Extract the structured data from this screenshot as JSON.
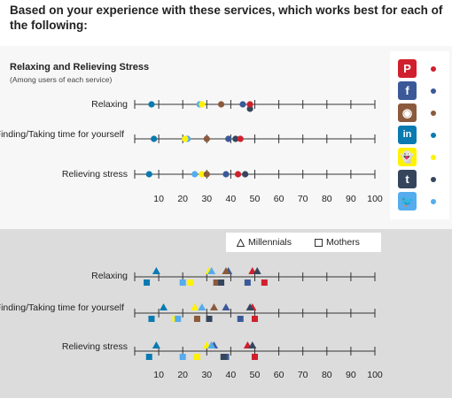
{
  "question": "Based on your experience with these services, which works best for each of the following:",
  "top": {
    "title": "Relaxing and Relieving Stress",
    "note": "(Among users of each service)"
  },
  "bottom": {
    "legend": {
      "millennials": "Millennials",
      "mothers": "Mothers"
    }
  },
  "colors": {
    "Pinterest": "#d0202d",
    "Facebook": "#3b5998",
    "Instagram": "#8b5a3c",
    "LinkedIn": "#0a7ab0",
    "Snapchat": "#fff200",
    "Tumblr": "#35465c",
    "Twitter": "#55acee"
  },
  "brands": [
    {
      "name": "Pinterest",
      "icon": "pinterest-icon",
      "glyph": "P",
      "bg": "#d0202d",
      "fg": "#ffffff"
    },
    {
      "name": "Facebook",
      "icon": "facebook-icon",
      "glyph": "f",
      "bg": "#3b5998",
      "fg": "#ffffff"
    },
    {
      "name": "Instagram",
      "icon": "instagram-icon",
      "glyph": "◉",
      "bg": "#8b5a3c",
      "fg": "#ffffff"
    },
    {
      "name": "LinkedIn",
      "icon": "linkedin-icon",
      "glyph": "in",
      "bg": "#0a7ab0",
      "fg": "#ffffff"
    },
    {
      "name": "Snapchat",
      "icon": "snapchat-icon",
      "glyph": "👻",
      "bg": "#fff200",
      "fg": "#ffffff"
    },
    {
      "name": "Tumblr",
      "icon": "tumblr-icon",
      "glyph": "t",
      "bg": "#35465c",
      "fg": "#ffffff"
    },
    {
      "name": "Twitter",
      "icon": "twitter-icon",
      "glyph": "🐦",
      "bg": "#55acee",
      "fg": "#ffffff"
    }
  ],
  "chart_data": [
    {
      "type": "scatter",
      "title": "Relaxing and Relieving Stress",
      "subtitle": "(Among users of each service)",
      "xlim": [
        0,
        100
      ],
      "xticks": [
        10,
        20,
        30,
        40,
        50,
        60,
        70,
        80,
        90,
        100
      ],
      "categories": [
        "Relaxing",
        "Finding/Taking time for yourself",
        "Relieving stress"
      ],
      "series": [
        {
          "name": "Pinterest",
          "values": [
            48,
            44,
            43
          ]
        },
        {
          "name": "Facebook",
          "values": [
            45,
            39,
            38
          ]
        },
        {
          "name": "Instagram",
          "values": [
            36,
            30,
            30
          ]
        },
        {
          "name": "LinkedIn",
          "values": [
            7,
            8,
            6
          ]
        },
        {
          "name": "Snapchat",
          "values": [
            28,
            21,
            28
          ]
        },
        {
          "name": "Tumblr",
          "values": [
            48,
            42,
            46
          ]
        },
        {
          "name": "Twitter",
          "values": [
            27,
            22,
            25
          ]
        }
      ]
    },
    {
      "type": "scatter",
      "xlim": [
        0,
        100
      ],
      "xticks": [
        10,
        20,
        30,
        40,
        50,
        60,
        70,
        80,
        90,
        100
      ],
      "categories": [
        "Relaxing",
        "Finding/Taking time for yourself",
        "Relieving stress"
      ],
      "legend": [
        "Millennials",
        "Mothers"
      ],
      "series": [
        {
          "name": "Pinterest",
          "millennials": [
            49,
            49,
            47
          ],
          "mothers": [
            54,
            50,
            50
          ]
        },
        {
          "name": "Facebook",
          "millennials": [
            39,
            38,
            33
          ],
          "mothers": [
            47,
            44,
            38
          ]
        },
        {
          "name": "Instagram",
          "millennials": [
            38,
            33,
            32
          ],
          "mothers": [
            34,
            26,
            26
          ]
        },
        {
          "name": "LinkedIn",
          "millennials": [
            9,
            12,
            9
          ],
          "mothers": [
            5,
            7,
            6
          ]
        },
        {
          "name": "Snapchat",
          "millennials": [
            31,
            25,
            30
          ],
          "mothers": [
            23,
            17,
            26
          ]
        },
        {
          "name": "Tumblr",
          "millennials": [
            51,
            48,
            49
          ],
          "mothers": [
            36,
            31,
            37
          ]
        },
        {
          "name": "Twitter",
          "millennials": [
            32,
            28,
            32
          ],
          "mothers": [
            20,
            18,
            20
          ]
        }
      ]
    }
  ]
}
